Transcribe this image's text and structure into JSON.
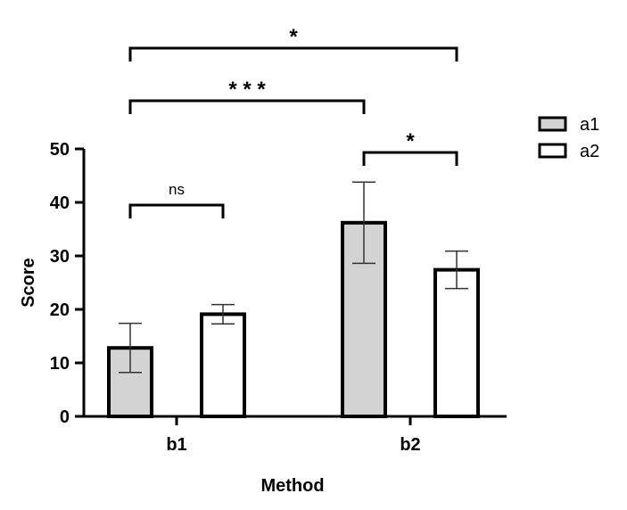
{
  "chart_data": {
    "type": "bar",
    "title": "",
    "xlabel": "Method",
    "ylabel": "Score",
    "ylim": [
      0,
      50
    ],
    "yticks": [
      "0",
      "10",
      "20",
      "30",
      "40",
      "50"
    ],
    "categories": [
      "b1",
      "b2"
    ],
    "grid": false,
    "legend_position": "top-right",
    "series": [
      {
        "name": "a1",
        "color": "#d3d3d3",
        "values": [
          12.8,
          36.2
        ],
        "error": [
          4.6,
          7.6
        ]
      },
      {
        "name": "a2",
        "color": "#ffffff",
        "values": [
          19.1,
          27.4
        ],
        "error": [
          1.8,
          3.5
        ]
      }
    ],
    "significance": [
      {
        "label": "ns",
        "from": "b1 a1",
        "to": "b1 a2"
      },
      {
        "label": "*",
        "from": "b2 a1",
        "to": "b2 a2"
      },
      {
        "label": "* * *",
        "from": "b1 a1",
        "to": "b2 a1"
      },
      {
        "label": "*",
        "from": "b1 a1",
        "to": "b2 a2"
      }
    ]
  }
}
